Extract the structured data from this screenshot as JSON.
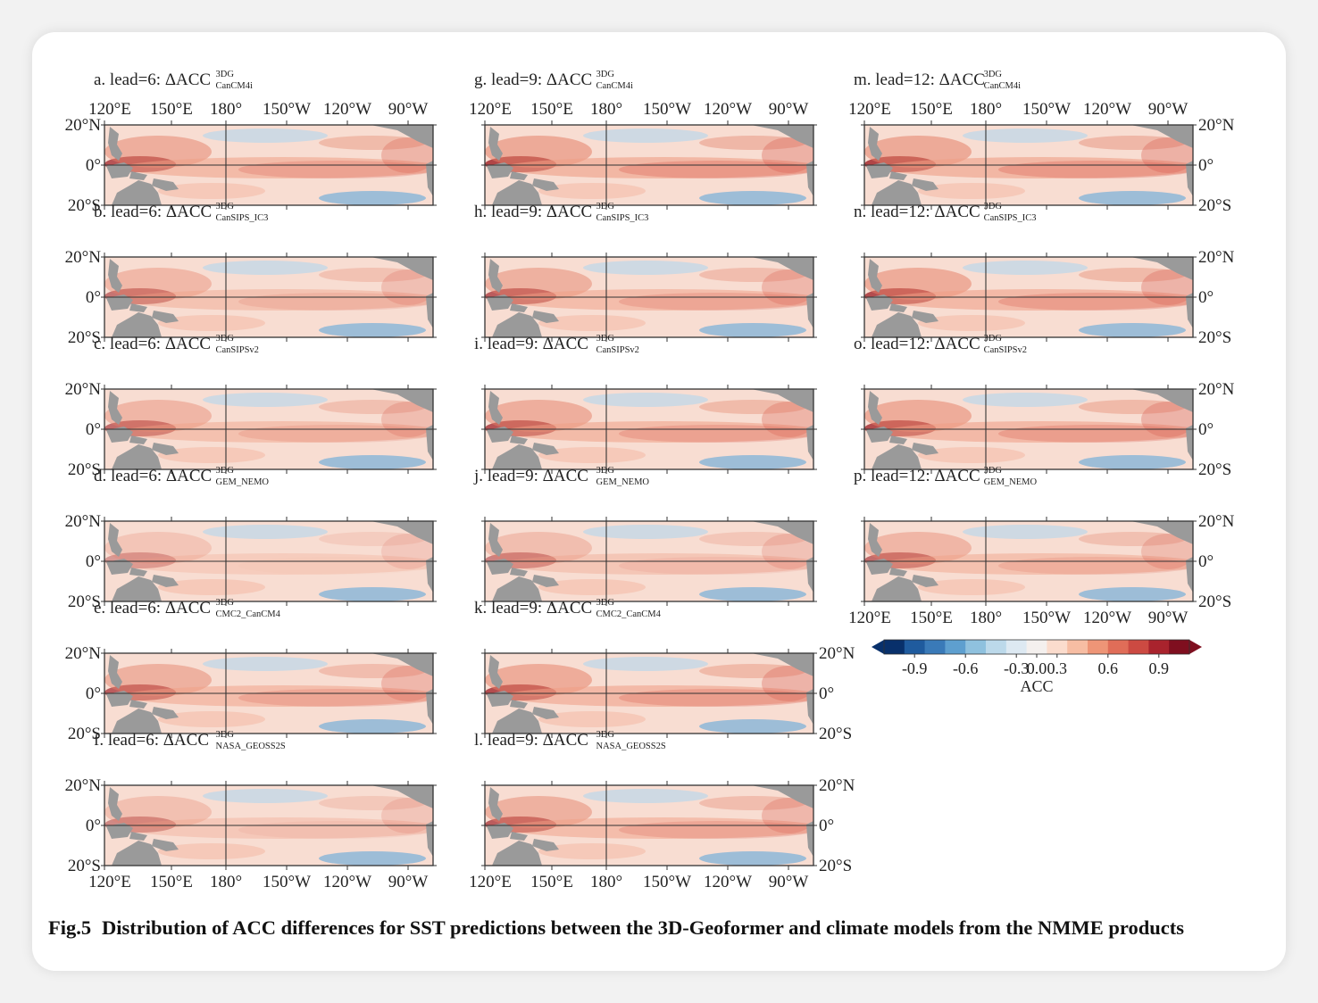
{
  "figure": {
    "panels": [
      {
        "id": "a",
        "label": "a. lead=6: ΔACC",
        "sup": "3DG",
        "sub": "CanCM4i"
      },
      {
        "id": "b",
        "label": "b. lead=6: ΔACC",
        "sup": "3DG",
        "sub": "CanSIPS_IC3"
      },
      {
        "id": "c",
        "label": "c. lead=6: ΔACC",
        "sup": "3DG",
        "sub": "CanSIPSv2"
      },
      {
        "id": "d",
        "label": "d. lead=6: ΔACC",
        "sup": "3DG",
        "sub": "GEM_NEMO"
      },
      {
        "id": "e",
        "label": "e. lead=6: ΔACC",
        "sup": "3DG",
        "sub": "CMC2_CanCM4"
      },
      {
        "id": "f",
        "label": "f. lead=6: ΔACC",
        "sup": "3DG",
        "sub": "NASA_GEOSS2S"
      },
      {
        "id": "g",
        "label": "g. lead=9: ΔACC",
        "sup": "3DG",
        "sub": "CanCM4i"
      },
      {
        "id": "h",
        "label": "h. lead=9: ΔACC",
        "sup": "3DG",
        "sub": "CanSIPS_IC3"
      },
      {
        "id": "i",
        "label": "i. lead=9: ΔACC",
        "sup": "3DG",
        "sub": "CanSIPSv2"
      },
      {
        "id": "j",
        "label": "j. lead=9: ΔACC",
        "sup": "3DG",
        "sub": "GEM_NEMO"
      },
      {
        "id": "k",
        "label": "k. lead=9: ΔACC",
        "sup": "3DG",
        "sub": "CMC2_CanCM4"
      },
      {
        "id": "l",
        "label": "l. lead=9: ΔACC",
        "sup": "3DG",
        "sub": "NASA_GEOSS2S"
      },
      {
        "id": "m",
        "label": "m. lead=12: ΔACC",
        "sup": "3DG",
        "sub": "CanCM4i"
      },
      {
        "id": "n",
        "label": "n. lead=12: ΔACC",
        "sup": "3DG",
        "sub": "CanSIPS_IC3"
      },
      {
        "id": "o",
        "label": "o. lead=12: ΔACC",
        "sup": "3DG",
        "sub": "CanSIPSv2"
      },
      {
        "id": "p",
        "label": "p. lead=12: ΔACC",
        "sup": "3DG",
        "sub": "GEM_NEMO"
      }
    ],
    "lon_ticks": [
      "120°E",
      "150°E",
      "180°",
      "150°W",
      "120°W",
      "90°W"
    ],
    "lat_ticks": [
      "20°N",
      "0°",
      "20°S"
    ],
    "colorbar": {
      "label": "ACC",
      "ticks": [
        "-0.9",
        "-0.6",
        "-0.3",
        "0.0",
        "0.3",
        "0.6",
        "0.9"
      ],
      "colors": [
        "#08306b",
        "#1f5b9e",
        "#3a7ab8",
        "#5e9fcf",
        "#8fc1de",
        "#bcd9ea",
        "#dde9f2",
        "#f4f0ee",
        "#fbdccd",
        "#f7bda3",
        "#ee9577",
        "#e06d58",
        "#cc4a42",
        "#a9232d",
        "#7f0f1f"
      ]
    },
    "caption_label": "Fig.5",
    "caption_text": "Distribution of ACC differences for SST predictions between the 3D-Geoformer and climate models from the NMME products"
  }
}
